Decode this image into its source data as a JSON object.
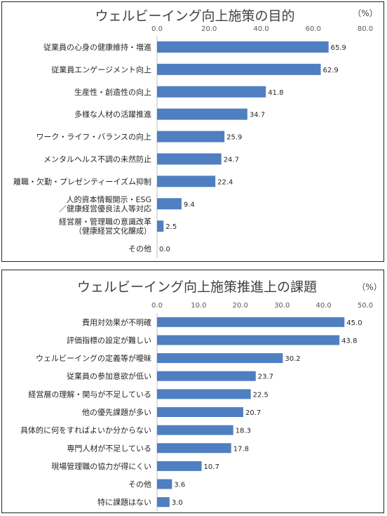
{
  "chart_data": [
    {
      "type": "bar",
      "orientation": "horizontal",
      "title": "ウェルビーイング向上施策の目的",
      "unit": "（%）",
      "xlim": [
        0,
        80
      ],
      "ticks": [
        "0.0",
        "20.0",
        "40.0",
        "60.0",
        "80.0"
      ],
      "categories": [
        [
          "従業員の心身の健康維持・増進"
        ],
        [
          "従業員エンゲージメント向上"
        ],
        [
          "生産性・創造性の向上"
        ],
        [
          "多様な人材の活躍推進"
        ],
        [
          "ワーク・ライフ・バランスの向上"
        ],
        [
          "メンタルヘルス不調の未然防止"
        ],
        [
          "離職・欠勤・プレゼンティーイズム抑制"
        ],
        [
          "人的資本情報開示・ESG",
          "／健康経営優良法人等対応"
        ],
        [
          "経営層・管理職の意識改革",
          "（健康経営文化醸成）"
        ],
        [
          "その他"
        ]
      ],
      "values": [
        65.9,
        62.9,
        41.8,
        34.7,
        25.9,
        24.7,
        22.4,
        9.4,
        2.5,
        0.0
      ],
      "value_labels": [
        "65.9",
        "62.9",
        "41.8",
        "34.7",
        "25.9",
        "24.7",
        "22.4",
        "9.4",
        "2.5",
        "0.0"
      ],
      "color": "#4f7fc1",
      "grid": false
    },
    {
      "type": "bar",
      "orientation": "horizontal",
      "title": "ウェルビーイング向上施策推進上の課題",
      "unit": "（%）",
      "xlim": [
        0,
        50
      ],
      "ticks": [
        "0.0",
        "10.0",
        "20.0",
        "30.0",
        "40.0",
        "50.0"
      ],
      "categories": [
        [
          "費用対効果が不明確"
        ],
        [
          "評価指標の設定が難しい"
        ],
        [
          "ウェルビーイングの定義等が曖昧"
        ],
        [
          "従業員の参加意欲が低い"
        ],
        [
          "経営層の理解・関与が不足している"
        ],
        [
          "他の優先課題が多い"
        ],
        [
          "具体的に何をすればよいか分からない"
        ],
        [
          "専門人材が不足している"
        ],
        [
          "現場管理職の協力が得にくい"
        ],
        [
          "その他"
        ],
        [
          "特に課題はない"
        ]
      ],
      "values": [
        45.0,
        43.8,
        30.2,
        23.7,
        22.5,
        20.7,
        18.3,
        17.8,
        10.7,
        3.6,
        3.0
      ],
      "value_labels": [
        "45.0",
        "43.8",
        "30.2",
        "23.7",
        "22.5",
        "20.7",
        "18.3",
        "17.8",
        "10.7",
        "3.6",
        "3.0"
      ],
      "color": "#4f7fc1",
      "grid": false
    }
  ]
}
